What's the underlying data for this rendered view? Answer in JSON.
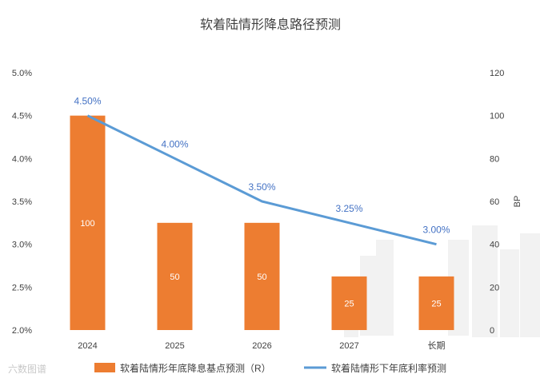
{
  "chart_data": {
    "type": "bar+line",
    "title": "软着陆情形降息路径预测",
    "categories": [
      "2024",
      "2025",
      "2026",
      "2027",
      "长期"
    ],
    "series": [
      {
        "name": "软着陆情形年底降息基点预测（R）",
        "type": "bar",
        "axis": "right",
        "values": [
          100,
          50,
          50,
          25,
          25
        ],
        "color": "#ED7D31"
      },
      {
        "name": "软着陆情形下年底利率预测",
        "type": "line",
        "axis": "left",
        "values": [
          4.5,
          4.0,
          3.5,
          3.25,
          3.0
        ],
        "labels": [
          "4.50%",
          "4.00%",
          "3.50%",
          "3.25%",
          "3.00%"
        ],
        "color": "#5B9BD5"
      }
    ],
    "left_axis": {
      "ylim": [
        2.0,
        5.0
      ],
      "ticks": [
        "5.0%",
        "4.5%",
        "4.0%",
        "3.5%",
        "3.0%",
        "2.5%",
        "2.0%"
      ]
    },
    "right_axis": {
      "ylim": [
        0,
        120
      ],
      "ticks": [
        "120",
        "100",
        "80",
        "60",
        "40",
        "20",
        "0"
      ],
      "label": "BP"
    },
    "bar_label_color": "#ffffff",
    "line_label_color": "#4472C4"
  },
  "watermark": "六数图谱"
}
